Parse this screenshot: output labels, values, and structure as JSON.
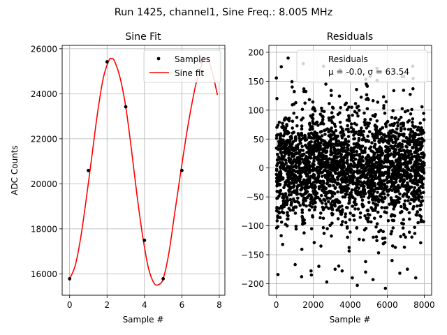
{
  "figure": {
    "suptitle": "Run 1425, channel1, Sine Freq.: 8.005 MHz"
  },
  "chart_data": [
    {
      "type": "line",
      "title": "Sine Fit",
      "xlabel": "Sample #",
      "ylabel": "ADC Counts",
      "xlim": [
        -0.4,
        8.3
      ],
      "ylim": [
        15050,
        26150
      ],
      "xticks": [
        0,
        2,
        4,
        6,
        8
      ],
      "yticks": [
        16000,
        18000,
        20000,
        22000,
        24000,
        26000
      ],
      "grid": true,
      "legend": {
        "placement": "top-right",
        "entries": [
          "Samples",
          "Sine fit"
        ]
      },
      "series": [
        {
          "name": "Samples",
          "style": "markers",
          "color": "#000000",
          "x": [
            0,
            1,
            2,
            3,
            4,
            5,
            6,
            7
          ],
          "y": [
            15780,
            20590,
            25420,
            23420,
            17490,
            15780,
            20590,
            25420
          ]
        },
        {
          "name": "Sine fit",
          "style": "line",
          "color": "#ff0000",
          "x": [
            0,
            0.3,
            0.6,
            0.9,
            1.2,
            1.5,
            1.8,
            2.1,
            2.25,
            2.4,
            2.7,
            3.0,
            3.3,
            3.6,
            3.9,
            4.2,
            4.5,
            4.75,
            5.0,
            5.3,
            5.6,
            5.9,
            6.2,
            6.5,
            6.8,
            7.1,
            7.3,
            7.5,
            7.7,
            7.9
          ],
          "y": [
            15780,
            16370,
            17650,
            19400,
            21300,
            23200,
            24700,
            25480,
            25560,
            25450,
            24700,
            23420,
            21550,
            19500,
            17700,
            16300,
            15600,
            15520,
            15780,
            16900,
            18600,
            20300,
            21950,
            23400,
            24600,
            25350,
            25550,
            25300,
            24700,
            23950
          ]
        }
      ]
    },
    {
      "type": "scatter",
      "title": "Residuals",
      "xlabel": "Sample #",
      "ylabel": "",
      "xlim": [
        -400,
        8400
      ],
      "ylim": [
        -220,
        212
      ],
      "xticks": [
        0,
        2000,
        4000,
        6000,
        8000
      ],
      "yticks": [
        -200,
        -150,
        -100,
        -50,
        0,
        50,
        100,
        150,
        200
      ],
      "grid": true,
      "legend": {
        "placement": "top-right",
        "entries": [
          "Residuals\n$\\mu$ = -0.0, $\\sigma$ = 63.54"
        ]
      },
      "series": [
        {
          "name": "Residuals",
          "color": "#000000",
          "n_points": 8000,
          "mean": -0.0,
          "std": 63.54,
          "sample_points": [
            [
              640,
              190
            ],
            [
              270,
              175
            ],
            [
              3450,
              170
            ],
            [
              2550,
              176
            ],
            [
              5450,
              172
            ],
            [
              7380,
              176
            ],
            [
              2680,
              145
            ],
            [
              5080,
              158
            ],
            [
              6890,
              158
            ],
            [
              860,
              140
            ],
            [
              4380,
              -203
            ],
            [
              5900,
              -208
            ],
            [
              4110,
              -190
            ],
            [
              1370,
              -188
            ],
            [
              7540,
              -190
            ],
            [
              5230,
              -193
            ],
            [
              2730,
              -197
            ],
            [
              1880,
              -178
            ],
            [
              6680,
              -182
            ],
            [
              3180,
              -175
            ],
            [
              3560,
              -178
            ],
            [
              7090,
              -175
            ],
            [
              1020,
              -167
            ],
            [
              2300,
              -170
            ],
            [
              4830,
              -180
            ],
            [
              6260,
              -160
            ]
          ]
        }
      ]
    }
  ]
}
